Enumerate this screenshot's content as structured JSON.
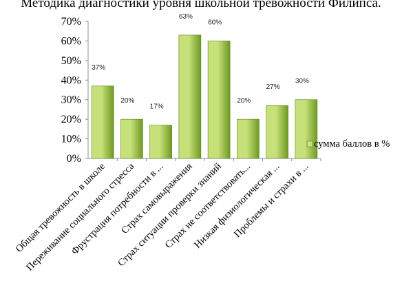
{
  "chart_data": {
    "type": "bar",
    "title": "Методика диагностики уровня школьной тревожности Филипса.",
    "categories": [
      "Общая тревожность в школе",
      "Переживание социального стресса",
      "Фрустрация потребности в ...",
      "Страх самовыражения",
      "Страх ситуации проверки знаний",
      "Страх не соответствовать...",
      "Низкая физиологическая ...",
      "Проблемы и страхи в ..."
    ],
    "series": [
      {
        "name": "сумма баллов в %",
        "values": [
          37,
          20,
          17,
          63,
          60,
          20,
          27,
          30
        ]
      }
    ],
    "data_labels": [
      "37%",
      "20%",
      "17%",
      "63%",
      "60%",
      "20%",
      "27%",
      "30%"
    ],
    "yticks": [
      "0%",
      "10%",
      "20%",
      "30%",
      "40%",
      "50%",
      "60%",
      "70%"
    ],
    "ylim": [
      0,
      70
    ],
    "grid": false,
    "legend_position": "right",
    "colors": {
      "bar_light": "#c6e07a",
      "bar_dark": "#6f9a22",
      "bar_stroke": "#5a7f18",
      "axis": "#8c8c8c"
    }
  }
}
